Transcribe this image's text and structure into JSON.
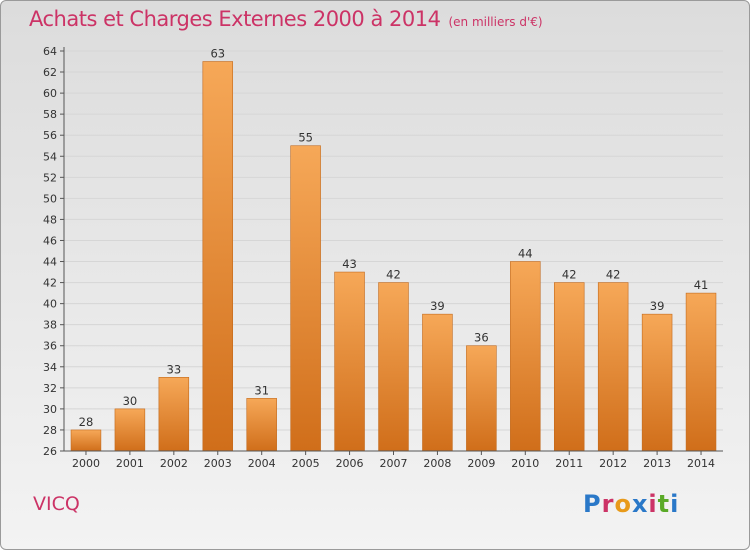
{
  "header": {
    "title": "Achats et Charges Externes 2000 à 2014",
    "subtitle": "(en milliers d'€)"
  },
  "footer": {
    "commune": "VICQ",
    "logo_text": "Proxiti"
  },
  "colors": {
    "bar_light": "#f6a858",
    "bar_dark": "#d06e1a",
    "title": "#cc3366",
    "grid": "#d6d6d6",
    "logo": [
      "#2a78c8",
      "#cc3366",
      "#e89a1a",
      "#2a78c8",
      "#cc3366",
      "#5aaa28",
      "#2a78c8"
    ]
  },
  "chart_data": {
    "type": "bar",
    "title": "Achats et Charges Externes 2000 à 2014",
    "subtitle": "(en milliers d'€)",
    "categories": [
      "2000",
      "2001",
      "2002",
      "2003",
      "2004",
      "2005",
      "2006",
      "2007",
      "2008",
      "2009",
      "2010",
      "2011",
      "2012",
      "2013",
      "2014"
    ],
    "values": [
      28,
      30,
      33,
      63,
      31,
      55,
      43,
      42,
      39,
      36,
      44,
      42,
      42,
      39,
      41
    ],
    "ylim": [
      26,
      64
    ],
    "ytick_step": 2,
    "grid": true
  }
}
